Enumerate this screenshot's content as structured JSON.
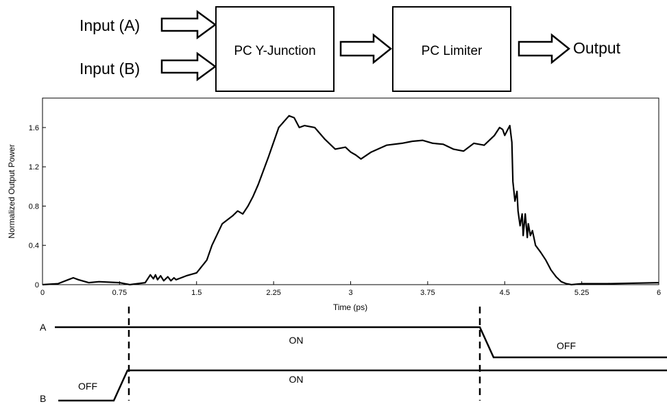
{
  "diagram": {
    "input_a": "Input (A)",
    "input_b": "Input (B)",
    "block_1": "PC Y-Junction",
    "block_2": "PC Limiter",
    "output": "Output"
  },
  "chart_data": {
    "type": "line",
    "title": "",
    "xlabel": "Time (ps)",
    "ylabel": "Normalized Output Power",
    "xlim": [
      0,
      6
    ],
    "ylim": [
      0,
      1.9
    ],
    "xticks": [
      "0",
      "0.75",
      "1.5",
      "2.25",
      "3",
      "3.75",
      "4.5",
      "5.25",
      "6"
    ],
    "yticks": [
      "0",
      "0.4",
      "0.8",
      "1.2",
      "1.6"
    ],
    "grid": false,
    "series": [
      {
        "x": [
          0,
          0.15,
          0.25,
          0.3,
          0.35,
          0.45,
          0.55,
          0.75,
          0.8,
          0.85,
          1.0,
          1.05,
          1.08,
          1.1,
          1.12,
          1.15,
          1.18,
          1.22,
          1.25,
          1.28,
          1.3,
          1.35,
          1.4,
          1.5,
          1.6,
          1.65,
          1.75,
          1.85,
          1.9,
          1.95,
          2.0,
          2.05,
          2.1,
          2.2,
          2.3,
          2.4,
          2.45,
          2.5,
          2.55,
          2.65,
          2.75,
          2.85,
          2.95,
          3.0,
          3.05,
          3.1,
          3.2,
          3.35,
          3.5,
          3.6,
          3.7,
          3.8,
          3.9,
          4.0,
          4.1,
          4.2,
          4.3,
          4.4,
          4.45,
          4.48,
          4.5,
          4.52,
          4.55,
          4.57,
          4.58,
          4.6,
          4.62,
          4.63,
          4.65,
          4.67,
          4.68,
          4.7,
          4.72,
          4.73,
          4.75,
          4.77,
          4.8,
          4.85,
          4.9,
          4.95,
          5.0,
          5.05,
          5.1,
          5.15,
          5.25,
          5.5,
          6.0
        ],
        "y": [
          0,
          0.01,
          0.05,
          0.07,
          0.05,
          0.02,
          0.03,
          0.02,
          0.01,
          0.0,
          0.02,
          0.1,
          0.06,
          0.1,
          0.05,
          0.09,
          0.04,
          0.08,
          0.04,
          0.07,
          0.05,
          0.07,
          0.09,
          0.12,
          0.25,
          0.4,
          0.62,
          0.7,
          0.75,
          0.72,
          0.8,
          0.9,
          1.02,
          1.3,
          1.6,
          1.72,
          1.7,
          1.6,
          1.62,
          1.6,
          1.48,
          1.38,
          1.4,
          1.35,
          1.32,
          1.28,
          1.35,
          1.42,
          1.44,
          1.46,
          1.47,
          1.44,
          1.43,
          1.38,
          1.36,
          1.44,
          1.42,
          1.52,
          1.6,
          1.58,
          1.52,
          1.56,
          1.62,
          1.45,
          1.05,
          0.85,
          0.95,
          0.75,
          0.6,
          0.72,
          0.5,
          0.72,
          0.48,
          0.62,
          0.5,
          0.55,
          0.4,
          0.33,
          0.25,
          0.15,
          0.08,
          0.03,
          0.01,
          0.0,
          0.01,
          0.01,
          0.02
        ]
      }
    ]
  },
  "timing": {
    "a_label": "A",
    "b_label": "B",
    "a_on": "ON",
    "a_off": "OFF",
    "b_off": "OFF",
    "b_on": "ON"
  }
}
